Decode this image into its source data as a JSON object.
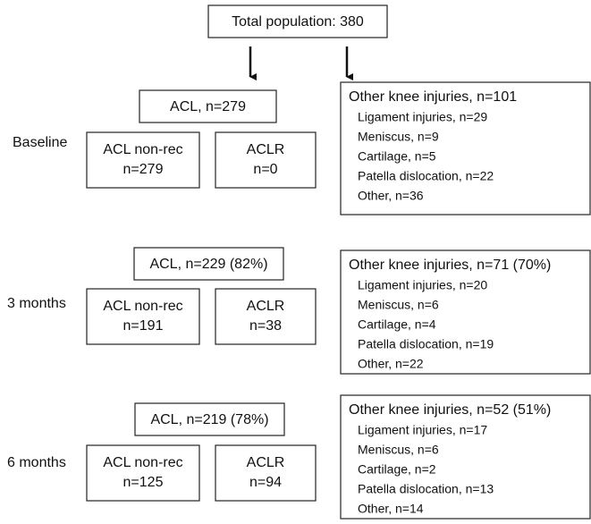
{
  "top": {
    "label": "Total population: 380"
  },
  "sections": [
    {
      "label": "Baseline",
      "acl": "ACL, n=279",
      "non_rec": {
        "label": "ACL non-rec",
        "n": "n=279"
      },
      "aclr": {
        "label": "ACLR",
        "n": "n=0"
      },
      "other": {
        "title": "Other knee injuries, n=101",
        "items": [
          "Ligament injuries, n=29",
          "Meniscus, n=9",
          "Cartilage, n=5",
          "Patella dislocation, n=22",
          "Other, n=36"
        ]
      }
    },
    {
      "label": "3 months",
      "acl": "ACL, n=229 (82%)",
      "non_rec": {
        "label": "ACL non-rec",
        "n": "n=191"
      },
      "aclr": {
        "label": "ACLR",
        "n": "n=38"
      },
      "other": {
        "title": "Other knee injuries, n=71 (70%)",
        "items": [
          "Ligament injuries, n=20",
          "Meniscus, n=6",
          "Cartilage, n=4",
          "Patella dislocation, n=19",
          "Other, n=22"
        ]
      }
    },
    {
      "label": "6 months",
      "acl": "ACL, n=219 (78%)",
      "non_rec": {
        "label": "ACL non-rec",
        "n": "n=125"
      },
      "aclr": {
        "label": "ACLR",
        "n": "n=94"
      },
      "other": {
        "title": "Other knee injuries, n=52 (51%)",
        "items": [
          "Ligament injuries, n=17",
          "Meniscus, n=6",
          "Cartilage, n=2",
          "Patella dislocation, n=13",
          "Other, n=14"
        ]
      }
    }
  ]
}
